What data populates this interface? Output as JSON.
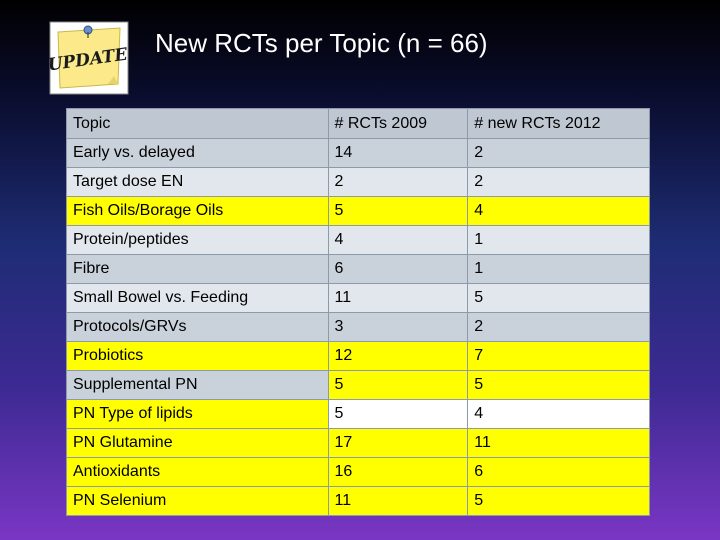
{
  "logo": {
    "text": "UPDATE",
    "icon": "sticky-note-pin-icon"
  },
  "title": "New RCTs per Topic (n = 66)",
  "table": {
    "headers": [
      "Topic",
      "# RCTs 2009",
      "# new RCTs 2012"
    ],
    "rows": [
      {
        "topic": "Early vs. delayed",
        "rcts_2009": "14",
        "new_rcts_2012": "2",
        "highlight": "none"
      },
      {
        "topic": "Target dose EN",
        "rcts_2009": "2",
        "new_rcts_2012": "2",
        "highlight": "none"
      },
      {
        "topic": "Fish Oils/Borage Oils",
        "rcts_2009": "5",
        "new_rcts_2012": "4",
        "highlight": "row"
      },
      {
        "topic": "Protein/peptides",
        "rcts_2009": "4",
        "new_rcts_2012": "1",
        "highlight": "none"
      },
      {
        "topic": "Fibre",
        "rcts_2009": "6",
        "new_rcts_2012": "1",
        "highlight": "none"
      },
      {
        "topic": "Small Bowel vs. Feeding",
        "rcts_2009": "11",
        "new_rcts_2012": "5",
        "highlight": "none"
      },
      {
        "topic": "Protocols/GRVs",
        "rcts_2009": "3",
        "new_rcts_2012": "2",
        "highlight": "none"
      },
      {
        "topic": "Probiotics",
        "rcts_2009": "12",
        "new_rcts_2012": "7",
        "highlight": "row"
      },
      {
        "topic": "Supplemental PN",
        "rcts_2009": "5",
        "new_rcts_2012": "5",
        "highlight": "partial"
      },
      {
        "topic": "PN Type of lipids",
        "rcts_2009": "5",
        "new_rcts_2012": "4",
        "highlight": "first-cell"
      },
      {
        "topic": "PN Glutamine",
        "rcts_2009": "17",
        "new_rcts_2012": "11",
        "highlight": "row"
      },
      {
        "topic": "Antioxidants",
        "rcts_2009": "16",
        "new_rcts_2012": "6",
        "highlight": "row"
      },
      {
        "topic": "PN Selenium",
        "rcts_2009": "11",
        "new_rcts_2012": "5",
        "highlight": "row"
      }
    ]
  },
  "colors": {
    "highlight": "#ffff00",
    "header_bg": "#bfc8d2",
    "row_odd": "#c9d1db",
    "row_even": "#e2e7ed",
    "background_top": "#000000",
    "background_bottom": "#7a36c4"
  }
}
